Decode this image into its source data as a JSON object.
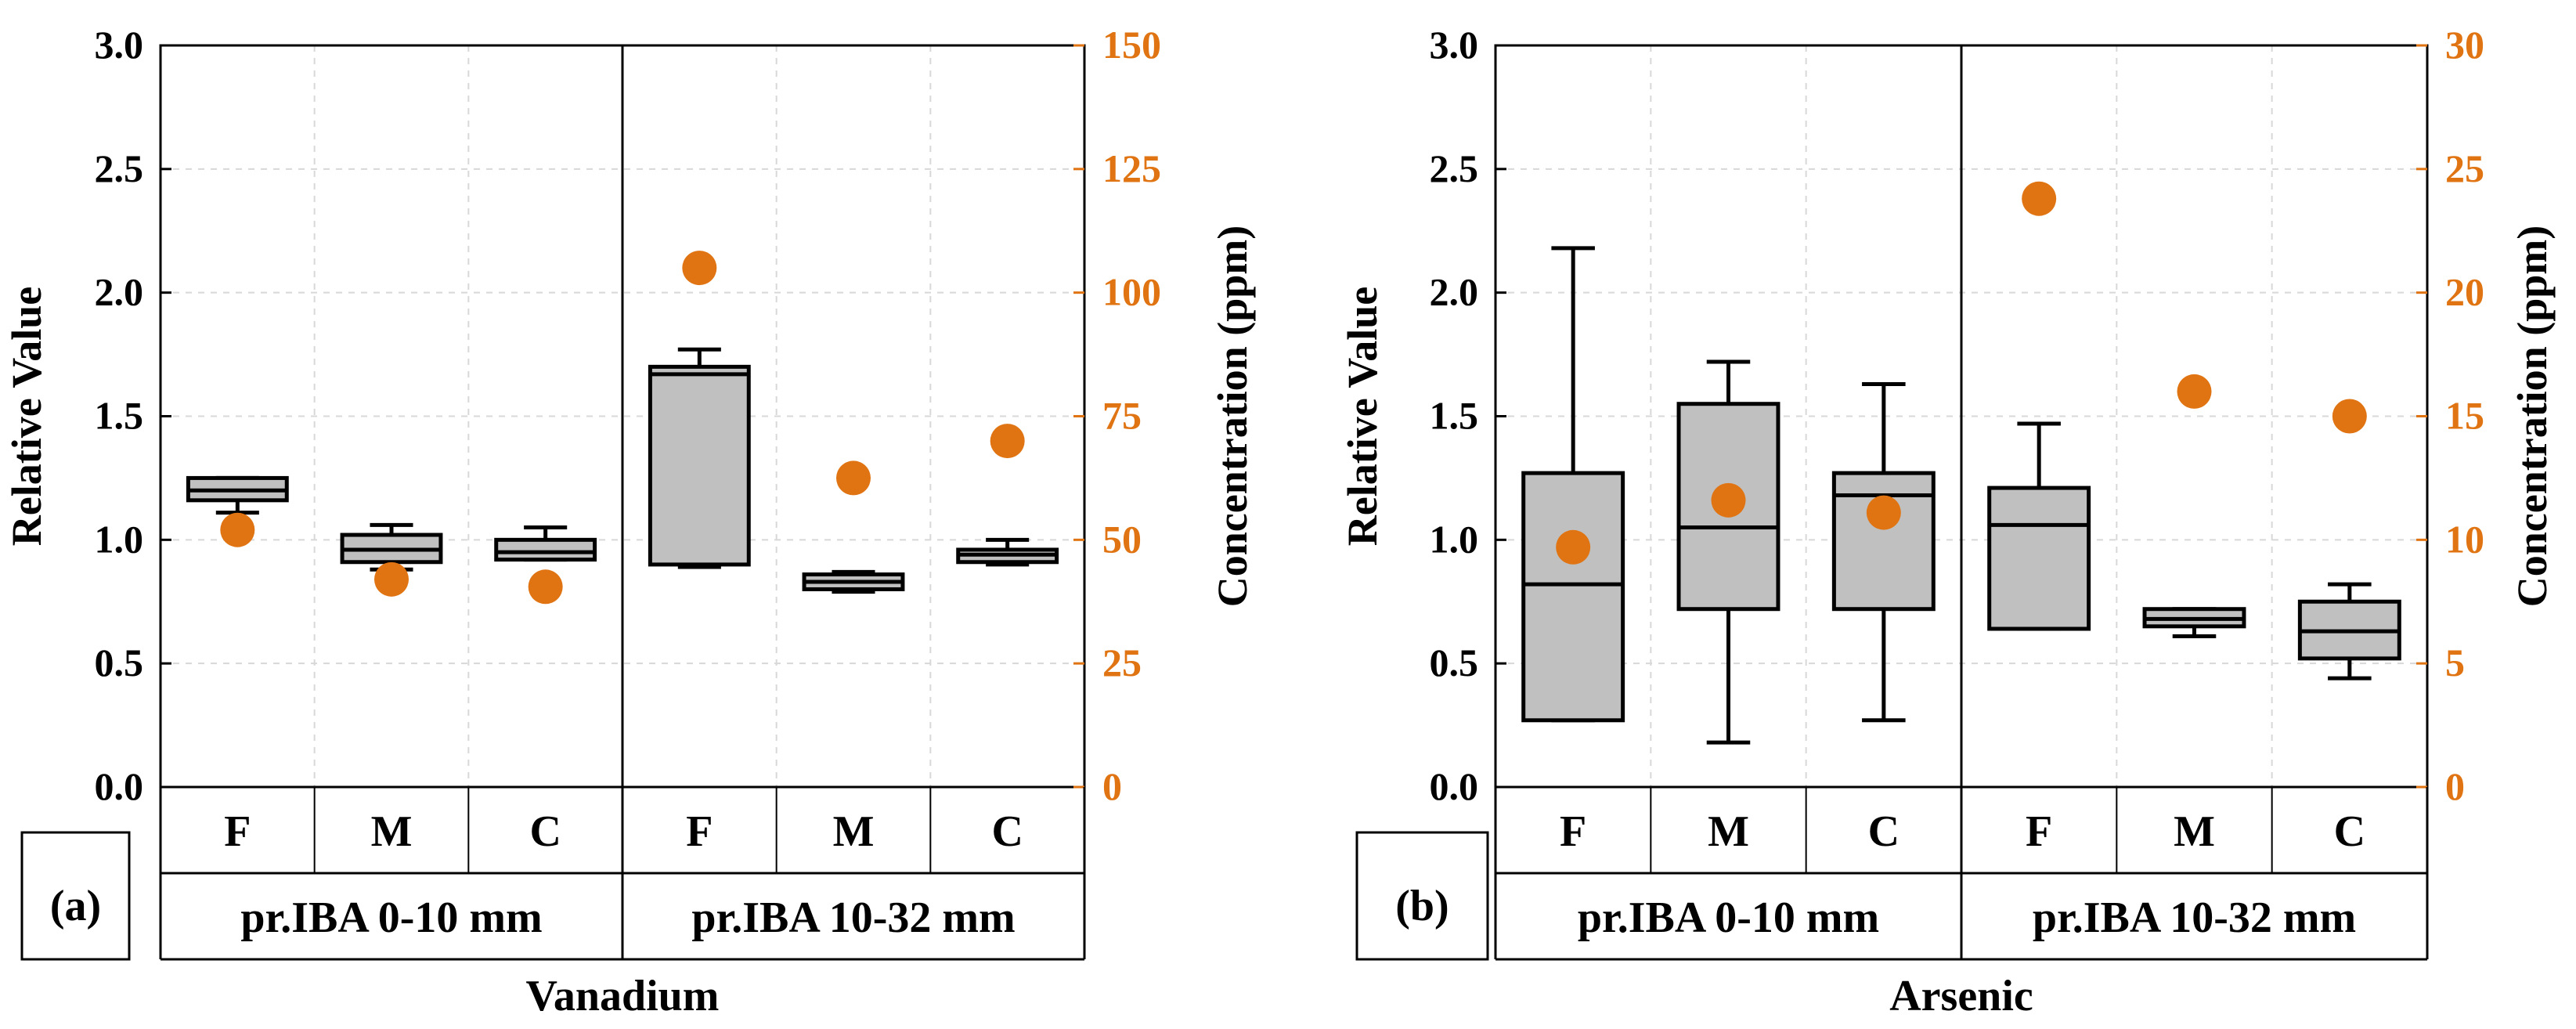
{
  "chart_data": [
    {
      "type": "box",
      "panel_label": "(a)",
      "title": "Vanadium",
      "ylabel": "Relative Value",
      "y2label": "Concentration (ppm)",
      "ylim": [
        0,
        3.0
      ],
      "y2lim": [
        0,
        150
      ],
      "yticks": [
        "0.0",
        "0.5",
        "1.0",
        "1.5",
        "2.0",
        "2.5",
        "3.0"
      ],
      "y2ticks": [
        "0",
        "25",
        "50",
        "75",
        "100",
        "125",
        "150"
      ],
      "categories": [
        "F",
        "M",
        "C",
        "F",
        "M",
        "C"
      ],
      "groups": [
        {
          "label": "pr.IBA 0-10 mm",
          "span": 3
        },
        {
          "label": "pr.IBA 10-32 mm",
          "span": 3
        }
      ],
      "boxes": [
        {
          "min": 1.11,
          "q1": 1.16,
          "median": 1.2,
          "q3": 1.25,
          "max": 1.25
        },
        {
          "min": 0.88,
          "q1": 0.91,
          "median": 0.96,
          "q3": 1.02,
          "max": 1.06
        },
        {
          "min": 0.92,
          "q1": 0.92,
          "median": 0.95,
          "q3": 1.0,
          "max": 1.05
        },
        {
          "min": 0.89,
          "q1": 0.9,
          "median": 1.67,
          "q3": 1.7,
          "max": 1.77
        },
        {
          "min": 0.79,
          "q1": 0.8,
          "median": 0.83,
          "q3": 0.86,
          "max": 0.87
        },
        {
          "min": 0.9,
          "q1": 0.91,
          "median": 0.94,
          "q3": 0.96,
          "max": 1.0
        }
      ],
      "concentration": [
        52,
        42,
        40.5,
        105,
        62.5,
        70
      ]
    },
    {
      "type": "box",
      "panel_label": "(b)",
      "title": "Arsenic",
      "ylabel": "Relative Value",
      "y2label": "Concentration (ppm)",
      "ylim": [
        0,
        3.0
      ],
      "y2lim": [
        0,
        30
      ],
      "yticks": [
        "0.0",
        "0.5",
        "1.0",
        "1.5",
        "2.0",
        "2.5",
        "3.0"
      ],
      "y2ticks": [
        "0",
        "5",
        "10",
        "15",
        "20",
        "25",
        "30"
      ],
      "categories": [
        "F",
        "M",
        "C",
        "F",
        "M",
        "C"
      ],
      "groups": [
        {
          "label": "pr.IBA 0-10 mm",
          "span": 3
        },
        {
          "label": "pr.IBA 10-32 mm",
          "span": 3
        }
      ],
      "boxes": [
        {
          "min": 0.27,
          "q1": 0.27,
          "median": 0.82,
          "q3": 1.27,
          "max": 2.18
        },
        {
          "min": 0.18,
          "q1": 0.72,
          "median": 1.05,
          "q3": 1.55,
          "max": 1.72
        },
        {
          "min": 0.27,
          "q1": 0.72,
          "median": 1.18,
          "q3": 1.27,
          "max": 1.63
        },
        {
          "min": 0.64,
          "q1": 0.64,
          "median": 1.06,
          "q3": 1.21,
          "max": 1.47
        },
        {
          "min": 0.61,
          "q1": 0.65,
          "median": 0.68,
          "q3": 0.72,
          "max": 0.72
        },
        {
          "min": 0.44,
          "q1": 0.52,
          "median": 0.63,
          "q3": 0.75,
          "max": 0.82
        }
      ],
      "concentration": [
        9.7,
        11.6,
        11.1,
        23.8,
        16,
        15
      ]
    }
  ],
  "colors": {
    "box_fill": "#c0c0c0",
    "orange": "#e07412",
    "axis": "#000000",
    "grid": "#d8d8d8"
  }
}
